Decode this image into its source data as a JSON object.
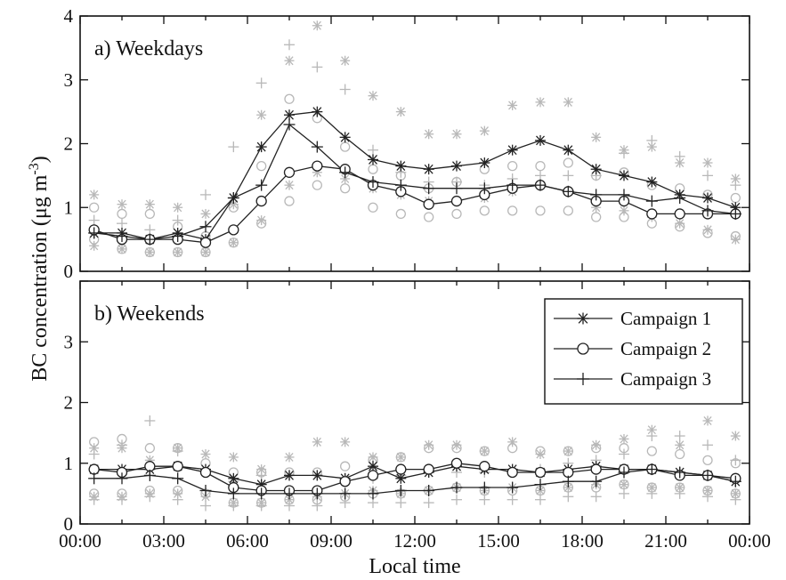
{
  "chart_data": [
    {
      "type": "line",
      "panel_label": "a) Weekdays",
      "xlabel": "Local time",
      "ylabel_main": "BC concentration (μg m",
      "ylabel_sup": "-3",
      "ylabel_close": ")",
      "ylim": [
        0,
        4
      ],
      "yticks": [
        "0",
        "1",
        "2",
        "3",
        "4"
      ],
      "xticks": [
        "00:00",
        "03:00",
        "06:00",
        "09:00",
        "12:00",
        "15:00",
        "18:00",
        "21:00",
        "00:00"
      ],
      "x_hours": [
        0.5,
        1.5,
        2.5,
        3.5,
        4.5,
        5.5,
        6.5,
        7.5,
        8.5,
        9.5,
        10.5,
        11.5,
        12.5,
        13.5,
        14.5,
        15.5,
        16.5,
        17.5,
        18.5,
        19.5,
        20.5,
        21.5,
        22.5,
        23.5
      ],
      "series": [
        {
          "marker": "star",
          "values": [
            0.6,
            0.6,
            0.5,
            0.6,
            0.5,
            1.15,
            1.95,
            2.45,
            2.5,
            2.1,
            1.75,
            1.65,
            1.6,
            1.65,
            1.7,
            1.9,
            2.05,
            1.9,
            1.6,
            1.5,
            1.4,
            1.2,
            1.15,
            1.0
          ],
          "upper": [
            1.2,
            1.05,
            1.05,
            1.0,
            0.9,
            1.05,
            2.45,
            3.3,
            3.85,
            3.3,
            2.75,
            2.5,
            2.15,
            2.15,
            2.2,
            2.6,
            2.65,
            2.65,
            2.1,
            1.9,
            1.95,
            1.7,
            1.7,
            1.45
          ],
          "lower": [
            0.4,
            0.35,
            0.3,
            0.3,
            0.3,
            0.45,
            0.8,
            1.35,
            1.55,
            1.45,
            1.3,
            1.2,
            1.1,
            1.1,
            1.15,
            1.25,
            1.35,
            1.25,
            1.0,
            0.95,
            0.85,
            0.75,
            0.65,
            0.5
          ]
        },
        {
          "marker": "circle",
          "values": [
            0.65,
            0.5,
            0.5,
            0.5,
            0.45,
            0.65,
            1.1,
            1.55,
            1.65,
            1.6,
            1.35,
            1.25,
            1.05,
            1.1,
            1.2,
            1.3,
            1.35,
            1.25,
            1.1,
            1.1,
            0.9,
            0.9,
            0.9,
            0.9
          ],
          "upper": [
            1.0,
            0.9,
            0.9,
            0.7,
            0.55,
            1.0,
            1.65,
            2.7,
            2.4,
            1.95,
            1.6,
            1.5,
            1.3,
            1.4,
            1.6,
            1.65,
            1.65,
            1.7,
            1.5,
            1.55,
            1.35,
            1.3,
            1.2,
            1.15
          ],
          "lower": [
            0.5,
            0.35,
            0.3,
            0.3,
            0.3,
            0.45,
            0.75,
            1.1,
            1.35,
            1.3,
            1.0,
            0.9,
            0.85,
            0.9,
            0.95,
            0.95,
            0.95,
            0.95,
            0.85,
            0.85,
            0.75,
            0.7,
            0.6,
            0.55
          ]
        },
        {
          "marker": "plus",
          "values": [
            0.6,
            0.55,
            0.5,
            0.55,
            0.7,
            1.15,
            1.35,
            2.3,
            1.95,
            1.55,
            1.4,
            1.35,
            1.3,
            1.3,
            1.3,
            1.35,
            1.35,
            1.25,
            1.2,
            1.2,
            1.1,
            1.15,
            0.95,
            0.9
          ],
          "upper": [
            0.8,
            0.75,
            0.65,
            0.8,
            1.2,
            1.95,
            2.95,
            3.55,
            3.2,
            2.85,
            1.9,
            1.55,
            1.4,
            1.4,
            1.35,
            1.45,
            1.5,
            1.5,
            1.5,
            1.85,
            2.05,
            1.8,
            1.5,
            1.35
          ]
        }
      ]
    },
    {
      "type": "line",
      "panel_label": "b) Weekends",
      "ylim": [
        0,
        4
      ],
      "yticks": [
        "0",
        "1",
        "2",
        "3",
        ""
      ],
      "legend": {
        "position": "top-right",
        "entries": [
          "Campaign 1",
          "Campaign 2",
          "Campaign 3"
        ]
      },
      "x_hours": [
        0.5,
        1.5,
        2.5,
        3.5,
        4.5,
        5.5,
        6.5,
        7.5,
        8.5,
        9.5,
        10.5,
        11.5,
        12.5,
        13.5,
        14.5,
        15.5,
        16.5,
        17.5,
        18.5,
        19.5,
        20.5,
        21.5,
        22.5,
        23.5
      ],
      "series": [
        {
          "marker": "star",
          "values": [
            0.9,
            0.9,
            0.9,
            0.95,
            0.9,
            0.75,
            0.65,
            0.8,
            0.8,
            0.75,
            0.95,
            0.75,
            0.85,
            0.95,
            0.9,
            0.9,
            0.85,
            0.9,
            0.95,
            0.9,
            0.9,
            0.85,
            0.8,
            0.7
          ],
          "upper": [
            1.25,
            1.25,
            1.05,
            1.25,
            1.15,
            1.1,
            0.9,
            1.1,
            1.35,
            1.35,
            1.1,
            1.1,
            1.3,
            1.3,
            1.2,
            1.35,
            1.15,
            1.2,
            1.3,
            1.4,
            1.55,
            1.3,
            1.7,
            1.45
          ],
          "lower": [
            0.45,
            0.45,
            0.5,
            0.5,
            0.45,
            0.35,
            0.35,
            0.4,
            0.45,
            0.5,
            0.55,
            0.5,
            0.55,
            0.6,
            0.55,
            0.6,
            0.55,
            0.6,
            0.65,
            0.65,
            0.6,
            0.6,
            0.55,
            0.5
          ]
        },
        {
          "marker": "circle",
          "values": [
            0.9,
            0.85,
            0.95,
            0.95,
            0.85,
            0.6,
            0.55,
            0.55,
            0.55,
            0.7,
            0.8,
            0.9,
            0.9,
            1.0,
            0.95,
            0.85,
            0.85,
            0.85,
            0.9,
            0.9,
            0.9,
            0.8,
            0.8,
            0.75
          ],
          "upper": [
            1.35,
            1.4,
            1.25,
            1.25,
            1.0,
            0.85,
            0.85,
            0.85,
            0.85,
            0.95,
            1.05,
            1.1,
            1.25,
            1.25,
            1.2,
            1.25,
            1.2,
            1.2,
            1.25,
            1.25,
            1.2,
            1.15,
            1.05,
            1.0
          ],
          "lower": [
            0.5,
            0.5,
            0.55,
            0.55,
            0.5,
            0.35,
            0.35,
            0.4,
            0.4,
            0.45,
            0.5,
            0.5,
            0.55,
            0.6,
            0.55,
            0.55,
            0.55,
            0.6,
            0.6,
            0.65,
            0.6,
            0.6,
            0.55,
            0.5
          ]
        },
        {
          "marker": "plus",
          "values": [
            0.75,
            0.75,
            0.8,
            0.75,
            0.55,
            0.5,
            0.5,
            0.5,
            0.5,
            0.5,
            0.5,
            0.55,
            0.55,
            0.6,
            0.6,
            0.6,
            0.65,
            0.7,
            0.7,
            0.85,
            0.9,
            0.85,
            0.8,
            0.7
          ],
          "upper": [
            1.15,
            1.3,
            1.7,
            1.2,
            0.85,
            0.7,
            0.8,
            0.8,
            0.8,
            0.75,
            0.75,
            0.8,
            0.85,
            0.85,
            0.85,
            0.85,
            0.9,
            1.0,
            1.05,
            1.15,
            1.45,
            1.45,
            1.3,
            1.05
          ],
          "lower": [
            0.4,
            0.4,
            0.45,
            0.4,
            0.3,
            0.3,
            0.3,
            0.3,
            0.3,
            0.35,
            0.35,
            0.35,
            0.35,
            0.4,
            0.4,
            0.4,
            0.4,
            0.45,
            0.45,
            0.5,
            0.5,
            0.5,
            0.45,
            0.4
          ]
        }
      ]
    }
  ]
}
